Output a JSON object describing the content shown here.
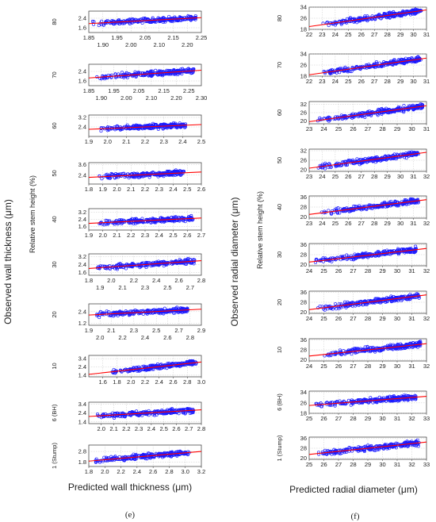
{
  "colors": {
    "points": "#1a1aff",
    "fit_line": "#ff0000",
    "plot_bg": "#ffffff"
  },
  "panels": [
    {
      "tag": "(e)",
      "ylabel": "Observed wall thickness (μm)",
      "row_axis_label": "Relative stem height (%)",
      "xlabel": "Predicted wall thickness (μm)"
    },
    {
      "tag": "(f)",
      "ylabel": "Observed radial diameter (μm)",
      "row_axis_label": "Relative stem height (%)",
      "xlabel": "Predicted radial diameter (μm)"
    }
  ],
  "chart_data": [
    {
      "type": "scatter",
      "panel": "(e)",
      "xlabel": "Predicted wall thickness (μm)",
      "ylabel": "Observed wall thickness (μm)",
      "grid": true,
      "rows": [
        {
          "label": "80",
          "xlim": [
            1.85,
            2.25
          ],
          "ylim": [
            1.2,
            3.0
          ],
          "x_ticks_top": [
            "1.85",
            "1.95",
            "2.05",
            "2.15",
            "2.25"
          ],
          "x_ticks_bottom": [
            "1.90",
            "2.00",
            "2.10",
            "2.20"
          ],
          "y_ticks": [
            "2.4",
            "1.6"
          ],
          "x_range": [
            1.86,
            2.23
          ],
          "fit": [
            [
              1.85,
              1.95
            ],
            [
              2.25,
              2.45
            ]
          ]
        },
        {
          "label": "70",
          "xlim": [
            1.85,
            2.3
          ],
          "ylim": [
            1.2,
            3.0
          ],
          "x_ticks_top": [
            "1.85",
            "1.95",
            "2.05",
            "2.15",
            "2.25"
          ],
          "x_ticks_bottom": [
            "1.90",
            "2.00",
            "2.10",
            "2.20",
            "2.30"
          ],
          "y_ticks": [
            "2.4",
            "1.6"
          ],
          "x_range": [
            1.88,
            2.27
          ],
          "fit": [
            [
              1.85,
              1.85
            ],
            [
              2.3,
              2.5
            ]
          ]
        },
        {
          "label": "60",
          "xlim": [
            1.9,
            2.5
          ],
          "ylim": [
            1.6,
            3.4
          ],
          "x_ticks": [
            "1.9",
            "2.0",
            "2.1",
            "2.2",
            "2.3",
            "2.4",
            "2.5"
          ],
          "y_ticks": [
            "3.2",
            "2.4"
          ],
          "x_range": [
            1.96,
            2.42
          ],
          "fit": [
            [
              1.9,
              2.2
            ],
            [
              2.5,
              2.6
            ]
          ]
        },
        {
          "label": "50",
          "xlim": [
            1.8,
            2.6
          ],
          "ylim": [
            1.4,
            3.8
          ],
          "x_ticks": [
            "1.8",
            "1.9",
            "2.0",
            "2.1",
            "2.2",
            "2.3",
            "2.4",
            "2.5",
            "2.6"
          ],
          "y_ticks": [
            "3.6",
            "2.4"
          ],
          "x_range": [
            1.86,
            2.48
          ],
          "fit": [
            [
              1.8,
              2.15
            ],
            [
              2.6,
              2.75
            ]
          ]
        },
        {
          "label": "40",
          "xlim": [
            1.9,
            2.7
          ],
          "ylim": [
            1.2,
            3.6
          ],
          "x_ticks": [
            "1.9",
            "2.0",
            "2.1",
            "2.2",
            "2.3",
            "2.4",
            "2.5",
            "2.6",
            "2.7"
          ],
          "y_ticks": [
            "3.2",
            "2.4",
            "1.6"
          ],
          "x_range": [
            1.97,
            2.64
          ],
          "fit": [
            [
              1.9,
              1.95
            ],
            [
              2.7,
              2.55
            ]
          ]
        },
        {
          "label": "30",
          "xlim": [
            1.8,
            2.8
          ],
          "ylim": [
            1.3,
            3.5
          ],
          "x_ticks_top": [
            "1.8",
            "2.0",
            "2.2",
            "2.4",
            "2.6",
            "2.8"
          ],
          "x_ticks_bottom": [
            "1.9",
            "2.1",
            "2.3",
            "2.5",
            "2.7"
          ],
          "y_ticks": [
            "3.2",
            "2.4",
            "1.6"
          ],
          "x_range": [
            1.86,
            2.74
          ],
          "fit": [
            [
              1.8,
              2.0
            ],
            [
              2.8,
              2.8
            ]
          ]
        },
        {
          "label": "20",
          "xlim": [
            1.9,
            2.9
          ],
          "ylim": [
            1.0,
            3.2
          ],
          "x_ticks_top": [
            "1.9",
            "2.1",
            "2.3",
            "2.5",
            "2.7",
            "2.9"
          ],
          "x_ticks_bottom": [
            "2.0",
            "2.2",
            "2.4",
            "2.6",
            "2.8"
          ],
          "y_ticks": [
            "2.4",
            "1.2"
          ],
          "x_range": [
            1.95,
            2.78
          ],
          "fit": [
            [
              1.9,
              2.05
            ],
            [
              2.9,
              2.65
            ]
          ]
        },
        {
          "label": "10",
          "xlim": [
            1.4,
            3.0
          ],
          "ylim": [
            1.2,
            3.8
          ],
          "x_ticks": [
            "1.6",
            "1.8",
            "2.0",
            "2.2",
            "2.4",
            "2.6",
            "2.8",
            "3.0"
          ],
          "y_ticks": [
            "3.4",
            "2.4",
            "1.4"
          ],
          "x_range": [
            1.72,
            2.93
          ],
          "fit": [
            [
              1.4,
              1.5
            ],
            [
              3.0,
              3.0
            ]
          ]
        },
        {
          "label": "6 (BH)",
          "xlim": [
            1.9,
            2.8
          ],
          "ylim": [
            1.2,
            3.6
          ],
          "x_ticks": [
            "2.0",
            "2.1",
            "2.2",
            "2.3",
            "2.4",
            "2.5",
            "2.6",
            "2.7",
            "2.8"
          ],
          "y_ticks": [
            "3.4",
            "2.4",
            "1.4"
          ],
          "x_range": [
            1.96,
            2.74
          ],
          "fit": [
            [
              1.9,
              2.0
            ],
            [
              2.8,
              2.75
            ]
          ]
        },
        {
          "label": "1 (Stump)",
          "xlim": [
            1.8,
            3.2
          ],
          "ylim": [
            1.4,
            3.4
          ],
          "x_ticks": [
            "1.8",
            "2.0",
            "2.2",
            "2.4",
            "2.6",
            "2.8",
            "3.0",
            "3.2"
          ],
          "y_ticks": [
            "2.8",
            "1.8"
          ],
          "x_range": [
            1.88,
            3.05
          ],
          "fit": [
            [
              1.8,
              1.9
            ],
            [
              3.2,
              2.8
            ]
          ]
        }
      ]
    },
    {
      "type": "scatter",
      "panel": "(f)",
      "xlabel": "Predicted radial diameter (μm)",
      "ylabel": "Observed radial diameter (μm)",
      "grid": true,
      "rows": [
        {
          "label": "80",
          "xlim": [
            22,
            31
          ],
          "ylim": [
            18,
            34
          ],
          "x_ticks": [
            "22",
            "23",
            "24",
            "25",
            "26",
            "27",
            "28",
            "29",
            "30",
            "31"
          ],
          "y_ticks": [
            "34",
            "26",
            "18"
          ],
          "x_range": [
            23.0,
            30.6
          ],
          "fit": [
            [
              22,
              20
            ],
            [
              31,
              32
            ]
          ]
        },
        {
          "label": "70",
          "xlim": [
            22,
            31
          ],
          "ylim": [
            18,
            34
          ],
          "x_ticks": [
            "22",
            "23",
            "24",
            "25",
            "26",
            "27",
            "28",
            "29",
            "30",
            "31"
          ],
          "y_ticks": [
            "34",
            "26",
            "18"
          ],
          "x_range": [
            23.0,
            30.6
          ],
          "fit": [
            [
              22,
              19
            ],
            [
              31,
              31
            ]
          ]
        },
        {
          "label": "60",
          "xlim": [
            23,
            31
          ],
          "ylim": [
            18,
            34
          ],
          "x_ticks": [
            "23",
            "24",
            "25",
            "26",
            "27",
            "28",
            "29",
            "30",
            "31"
          ],
          "y_ticks": [
            "32",
            "26",
            "20"
          ],
          "x_range": [
            23.5,
            30.8
          ],
          "fit": [
            [
              23,
              19.5
            ],
            [
              31,
              31
            ]
          ]
        },
        {
          "label": "50",
          "xlim": [
            23,
            32
          ],
          "ylim": [
            19,
            33
          ],
          "x_ticks": [
            "23",
            "24",
            "25",
            "26",
            "27",
            "28",
            "29",
            "30",
            "31",
            "32"
          ],
          "y_ticks": [
            "32",
            "26",
            "20"
          ],
          "x_range": [
            23.6,
            31.4
          ],
          "fit": [
            [
              23,
              21
            ],
            [
              32,
              31
            ]
          ]
        },
        {
          "label": "40",
          "xlim": [
            23,
            32
          ],
          "ylim": [
            19,
            37
          ],
          "x_ticks": [
            "23",
            "24",
            "25",
            "26",
            "27",
            "28",
            "29",
            "30",
            "31",
            "32"
          ],
          "y_ticks": [
            "36",
            "28",
            "20"
          ],
          "x_range": [
            23.8,
            31.4
          ],
          "fit": [
            [
              23,
              22
            ],
            [
              32,
              34
            ]
          ]
        },
        {
          "label": "30",
          "xlim": [
            24,
            32
          ],
          "ylim": [
            19,
            37
          ],
          "x_ticks": [
            "24",
            "25",
            "26",
            "27",
            "28",
            "29",
            "30",
            "31",
            "32"
          ],
          "y_ticks": [
            "36",
            "28",
            "20"
          ],
          "x_range": [
            24.4,
            31.3
          ],
          "fit": [
            [
              24,
              22
            ],
            [
              32,
              33
            ]
          ]
        },
        {
          "label": "20",
          "xlim": [
            24,
            32
          ],
          "ylim": [
            19,
            37
          ],
          "x_ticks": [
            "24",
            "25",
            "26",
            "27",
            "28",
            "29",
            "30",
            "31",
            "32"
          ],
          "y_ticks": [
            "36",
            "28",
            "20"
          ],
          "x_range": [
            24.6,
            31.5
          ],
          "fit": [
            [
              24,
              22
            ],
            [
              32,
              34
            ]
          ]
        },
        {
          "label": "10",
          "xlim": [
            24,
            32
          ],
          "ylim": [
            19,
            37
          ],
          "x_ticks": [
            "24",
            "25",
            "26",
            "27",
            "28",
            "29",
            "30",
            "31",
            "32"
          ],
          "y_ticks": [
            "36",
            "28",
            "20"
          ],
          "x_range": [
            25.0,
            31.6
          ],
          "fit": [
            [
              24,
              23
            ],
            [
              32,
              33
            ]
          ]
        },
        {
          "label": "6 (BH)",
          "xlim": [
            25,
            33
          ],
          "ylim": [
            18,
            35
          ],
          "x_ticks": [
            "25",
            "26",
            "27",
            "28",
            "29",
            "30",
            "31",
            "32",
            "33"
          ],
          "y_ticks": [
            "34",
            "26",
            "18"
          ],
          "x_range": [
            25.4,
            32.3
          ],
          "fit": [
            [
              25,
              24
            ],
            [
              33,
              31
            ]
          ]
        },
        {
          "label": "1 (Stump)",
          "xlim": [
            25,
            33
          ],
          "ylim": [
            19,
            37
          ],
          "x_ticks": [
            "25",
            "26",
            "27",
            "28",
            "29",
            "30",
            "31",
            "32",
            "33"
          ],
          "y_ticks": [
            "36",
            "28",
            "20"
          ],
          "x_range": [
            25.6,
            32.5
          ],
          "fit": [
            [
              25,
              23
            ],
            [
              33,
              33
            ]
          ]
        }
      ]
    }
  ]
}
